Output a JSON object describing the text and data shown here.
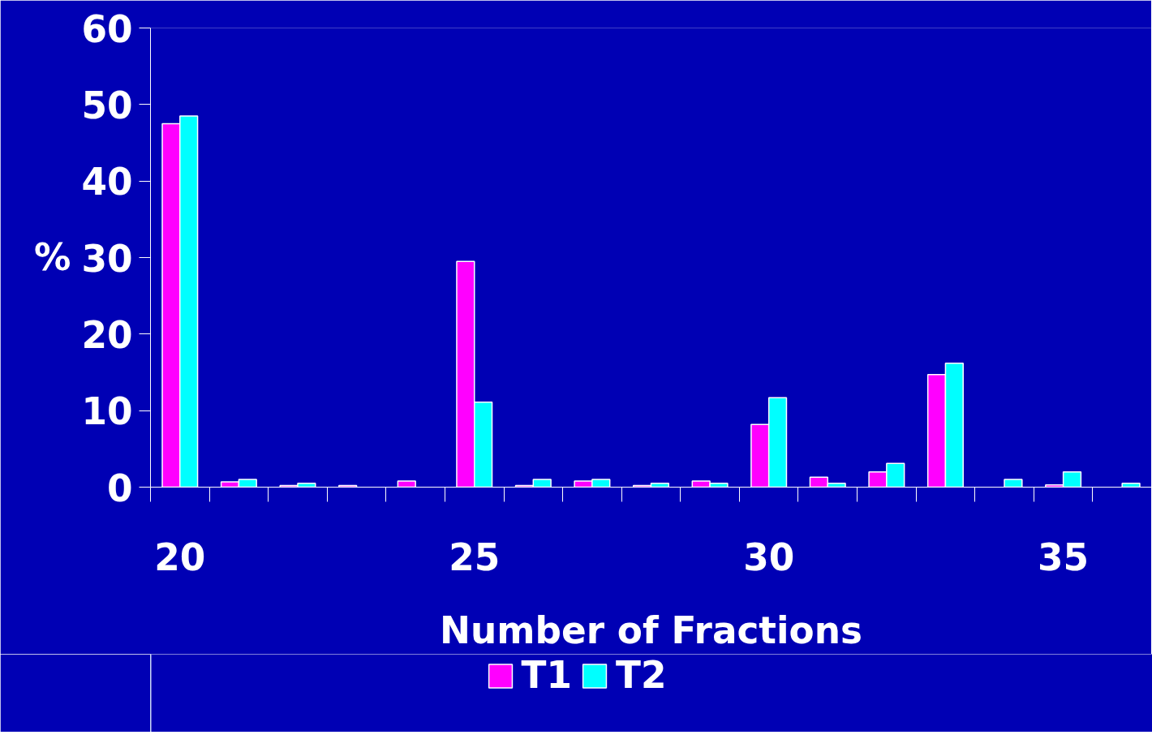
{
  "chart_data": {
    "type": "bar",
    "xlabel": "Number of Fractions",
    "ylabel": "%",
    "categories": [
      "20",
      null,
      null,
      null,
      null,
      "25",
      null,
      null,
      null,
      null,
      "30",
      null,
      null,
      null,
      null,
      "35",
      null
    ],
    "series": [
      {
        "name": "T1",
        "color": "#ff00ff",
        "values": [
          47.5,
          0.7,
          0.2,
          0.2,
          0.8,
          29.5,
          0.2,
          0.8,
          0.2,
          0.8,
          8.2,
          1.3,
          2.0,
          14.7,
          null,
          0.3,
          null
        ]
      },
      {
        "name": "T2",
        "color": "#00ffff",
        "values": [
          48.5,
          1.0,
          0.5,
          null,
          null,
          11.1,
          1.0,
          1.0,
          0.5,
          0.5,
          11.7,
          0.5,
          3.1,
          16.2,
          1.0,
          2.0,
          0.5
        ]
      }
    ],
    "ylim": [
      0,
      60
    ],
    "yticks": [
      0,
      10,
      20,
      30,
      40,
      50,
      60
    ],
    "grid": false,
    "legend": "bottom"
  }
}
